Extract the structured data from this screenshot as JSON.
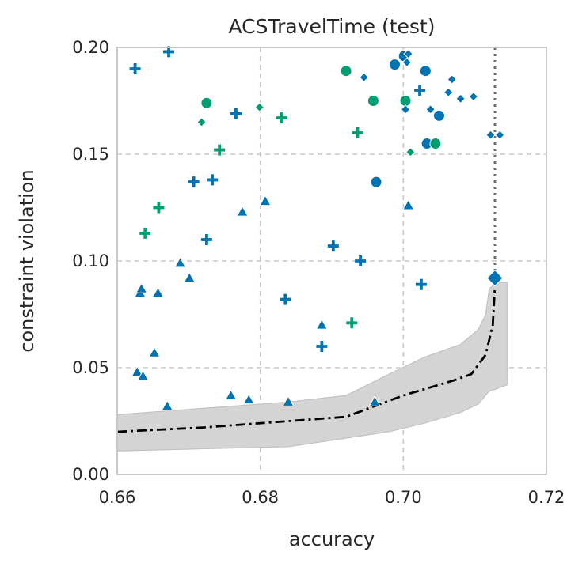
{
  "colors": {
    "blue": "#0173b2",
    "green": "#029e73",
    "band": "#d4d4d4",
    "line": "#000000",
    "vline": "#6e6e6e"
  },
  "chart_data": {
    "type": "scatter",
    "title": "ACSTravelTime (test)",
    "xlabel": "accuracy",
    "ylabel": "constraint violation",
    "xlim": [
      0.66,
      0.72
    ],
    "ylim": [
      0.0,
      0.2
    ],
    "xticks": [
      "0.66",
      "0.68",
      "0.70",
      "0.72"
    ],
    "yticks": [
      "0.00",
      "0.05",
      "0.10",
      "0.15",
      "0.20"
    ],
    "grid": true,
    "legend": "none",
    "vertical_line_x": 0.7128,
    "highlight_point": {
      "x": 0.7128,
      "y": 0.092,
      "marker": "diamond",
      "color": "blue"
    },
    "band": {
      "x": [
        0.66,
        0.684,
        0.692,
        0.698,
        0.703,
        0.708,
        0.7105,
        0.7115,
        0.712,
        0.713,
        0.7145
      ],
      "lower": [
        0.011,
        0.013,
        0.017,
        0.02,
        0.024,
        0.029,
        0.033,
        0.037,
        0.039,
        0.04,
        0.042
      ],
      "upper": [
        0.028,
        0.034,
        0.037,
        0.047,
        0.055,
        0.061,
        0.068,
        0.075,
        0.087,
        0.09,
        0.09
      ]
    },
    "mean_line": {
      "x": [
        0.66,
        0.672,
        0.684,
        0.692,
        0.696,
        0.7,
        0.704,
        0.707,
        0.7095,
        0.7115,
        0.7125,
        0.7128
      ],
      "y": [
        0.02,
        0.022,
        0.025,
        0.027,
        0.032,
        0.037,
        0.041,
        0.044,
        0.047,
        0.056,
        0.07,
        0.088
      ]
    },
    "series": [
      {
        "marker": "plus",
        "color": "blue",
        "points": [
          [
            0.6625,
            0.19
          ],
          [
            0.6672,
            0.198
          ],
          [
            0.6766,
            0.169
          ],
          [
            0.6707,
            0.137
          ],
          [
            0.6733,
            0.138
          ],
          [
            0.6725,
            0.11
          ],
          [
            0.6902,
            0.107
          ],
          [
            0.694,
            0.1
          ],
          [
            0.6835,
            0.082
          ],
          [
            0.6886,
            0.06
          ],
          [
            0.7025,
            0.089
          ],
          [
            0.7023,
            0.18
          ]
        ]
      },
      {
        "marker": "plus",
        "color": "green",
        "points": [
          [
            0.683,
            0.167
          ],
          [
            0.6743,
            0.152
          ],
          [
            0.6936,
            0.16
          ],
          [
            0.6658,
            0.125
          ],
          [
            0.6639,
            0.113
          ],
          [
            0.6928,
            0.071
          ]
        ]
      },
      {
        "marker": "triangle",
        "color": "blue",
        "points": [
          [
            0.6628,
            0.048
          ],
          [
            0.6636,
            0.046
          ],
          [
            0.6632,
            0.085
          ],
          [
            0.6634,
            0.087
          ],
          [
            0.6657,
            0.085
          ],
          [
            0.6688,
            0.099
          ],
          [
            0.6701,
            0.092
          ],
          [
            0.6652,
            0.057
          ],
          [
            0.667,
            0.032
          ],
          [
            0.6759,
            0.037
          ],
          [
            0.6784,
            0.035
          ],
          [
            0.6839,
            0.034
          ],
          [
            0.6775,
            0.123
          ],
          [
            0.6807,
            0.128
          ],
          [
            0.6886,
            0.07
          ],
          [
            0.696,
            0.034
          ],
          [
            0.7007,
            0.126
          ]
        ]
      },
      {
        "marker": "circle",
        "color": "blue",
        "points": [
          [
            0.6988,
            0.192
          ],
          [
            0.7001,
            0.196
          ],
          [
            0.7031,
            0.189
          ],
          [
            0.705,
            0.168
          ],
          [
            0.7033,
            0.155
          ],
          [
            0.6962,
            0.137
          ]
        ]
      },
      {
        "marker": "circle",
        "color": "green",
        "points": [
          [
            0.692,
            0.189
          ],
          [
            0.6958,
            0.175
          ],
          [
            0.7003,
            0.175
          ],
          [
            0.7045,
            0.155
          ],
          [
            0.6725,
            0.174
          ]
        ]
      },
      {
        "marker": "diamond",
        "color": "blue",
        "points": [
          [
            0.6945,
            0.186
          ],
          [
            0.7005,
            0.193
          ],
          [
            0.7007,
            0.197
          ],
          [
            0.7003,
            0.171
          ],
          [
            0.7038,
            0.171
          ],
          [
            0.7063,
            0.179
          ],
          [
            0.7068,
            0.185
          ],
          [
            0.708,
            0.176
          ],
          [
            0.7098,
            0.177
          ],
          [
            0.7122,
            0.159
          ],
          [
            0.7135,
            0.159
          ]
        ]
      },
      {
        "marker": "diamond",
        "color": "green",
        "points": [
          [
            0.6718,
            0.165
          ],
          [
            0.6799,
            0.172
          ],
          [
            0.701,
            0.151
          ]
        ]
      }
    ]
  }
}
